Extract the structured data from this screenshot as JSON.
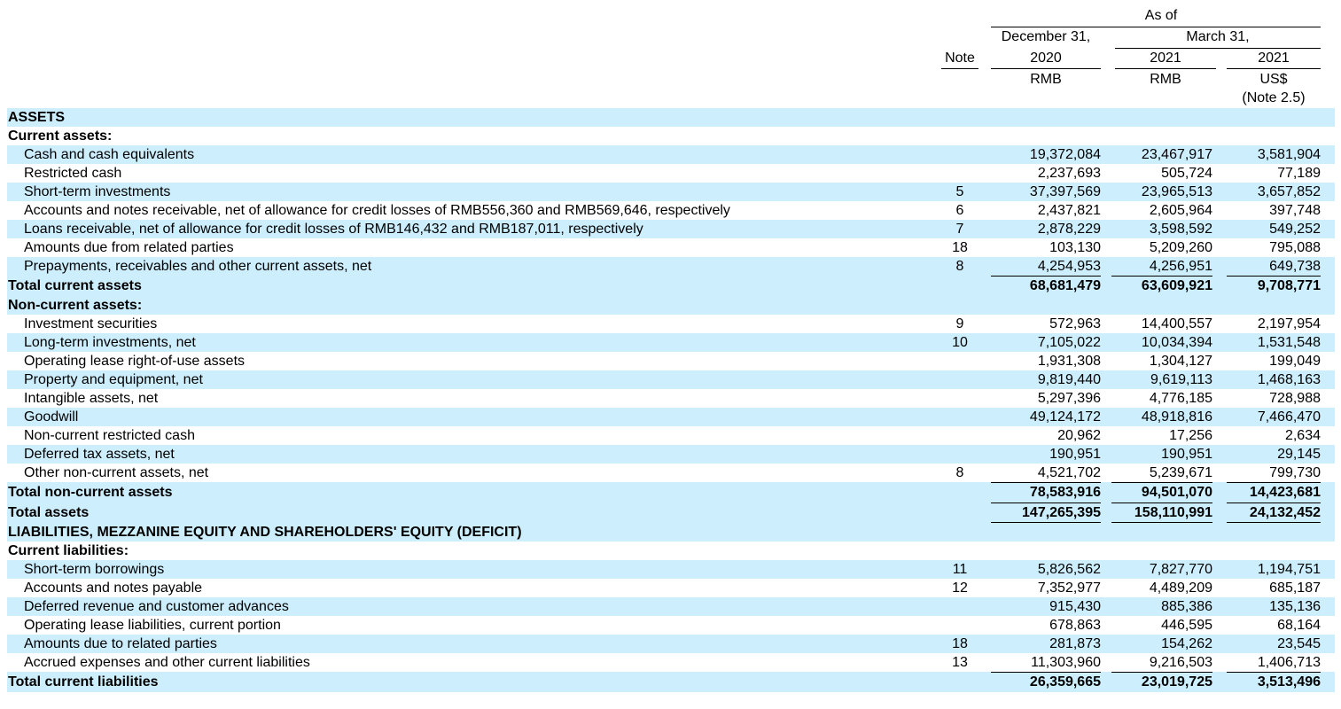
{
  "header": {
    "as_of": "As of",
    "march31": "March 31,",
    "dec31": "December 31,",
    "note": "Note",
    "y2020": "2020",
    "y2021a": "2021",
    "y2021b": "2021",
    "rmb1": "RMB",
    "rmb2": "RMB",
    "usd": "US$",
    "note25": "(Note 2.5)"
  },
  "rows": [
    {
      "type": "section",
      "label": "ASSETS"
    },
    {
      "type": "heading",
      "label": "Current assets:"
    },
    {
      "type": "item",
      "label": "Cash and cash equivalents",
      "note": "",
      "v1": "19,372,084",
      "v2": "23,467,917",
      "v3": "3,581,904"
    },
    {
      "type": "item",
      "label": "Restricted cash",
      "note": "",
      "v1": "2,237,693",
      "v2": "505,724",
      "v3": "77,189"
    },
    {
      "type": "item",
      "label": "Short-term investments",
      "note": "5",
      "v1": "37,397,569",
      "v2": "23,965,513",
      "v3": "3,657,852"
    },
    {
      "type": "item",
      "label": "Accounts and notes receivable, net of allowance for credit losses of RMB556,360 and RMB569,646, respectively",
      "note": "6",
      "v1": "2,437,821",
      "v2": "2,605,964",
      "v3": "397,748"
    },
    {
      "type": "item",
      "label": "Loans receivable, net of allowance for credit losses of RMB146,432 and RMB187,011, respectively",
      "note": "7",
      "v1": "2,878,229",
      "v2": "3,598,592",
      "v3": "549,252"
    },
    {
      "type": "item",
      "label": "Amounts due from related parties",
      "note": "18",
      "v1": "103,130",
      "v2": "5,209,260",
      "v3": "795,088"
    },
    {
      "type": "item",
      "label": "Prepayments, receivables and other current assets, net",
      "note": "8",
      "v1": "4,254,953",
      "v2": "4,256,951",
      "v3": "649,738"
    },
    {
      "type": "total",
      "label": "Total current assets",
      "note": "",
      "v1": "68,681,479",
      "v2": "63,609,921",
      "v3": "9,708,771"
    },
    {
      "type": "heading",
      "label": "Non-current assets:"
    },
    {
      "type": "item",
      "label": "Investment securities",
      "note": "9",
      "v1": "572,963",
      "v2": "14,400,557",
      "v3": "2,197,954"
    },
    {
      "type": "item",
      "label": "Long-term investments, net",
      "note": "10",
      "v1": "7,105,022",
      "v2": "10,034,394",
      "v3": "1,531,548"
    },
    {
      "type": "item",
      "label": "Operating lease right-of-use assets",
      "note": "",
      "v1": "1,931,308",
      "v2": "1,304,127",
      "v3": "199,049"
    },
    {
      "type": "item",
      "label": "Property and equipment, net",
      "note": "",
      "v1": "9,819,440",
      "v2": "9,619,113",
      "v3": "1,468,163"
    },
    {
      "type": "item",
      "label": "Intangible assets, net",
      "note": "",
      "v1": "5,297,396",
      "v2": "4,776,185",
      "v3": "728,988"
    },
    {
      "type": "item",
      "label": "Goodwill",
      "note": "",
      "v1": "49,124,172",
      "v2": "48,918,816",
      "v3": "7,466,470"
    },
    {
      "type": "item",
      "label": "Non-current restricted cash",
      "note": "",
      "v1": "20,962",
      "v2": "17,256",
      "v3": "2,634"
    },
    {
      "type": "item",
      "label": "Deferred tax assets, net",
      "note": "",
      "v1": "190,951",
      "v2": "190,951",
      "v3": "29,145"
    },
    {
      "type": "item",
      "label": "Other non-current assets, net",
      "note": "8",
      "v1": "4,521,702",
      "v2": "5,239,671",
      "v3": "799,730"
    },
    {
      "type": "total",
      "label": "Total non-current assets",
      "note": "",
      "v1": "78,583,916",
      "v2": "94,501,070",
      "v3": "14,423,681"
    },
    {
      "type": "total",
      "label": "Total assets",
      "note": "",
      "v1": "147,265,395",
      "v2": "158,110,991",
      "v3": "24,132,452",
      "double": true
    },
    {
      "type": "section",
      "label": "LIABILITIES, MEZZANINE EQUITY AND SHAREHOLDERS' EQUITY (DEFICIT)"
    },
    {
      "type": "heading",
      "label": "Current liabilities:"
    },
    {
      "type": "item",
      "label": "Short-term borrowings",
      "note": "11",
      "v1": "5,826,562",
      "v2": "7,827,770",
      "v3": "1,194,751"
    },
    {
      "type": "item",
      "label": "Accounts and notes payable",
      "note": "12",
      "v1": "7,352,977",
      "v2": "4,489,209",
      "v3": "685,187"
    },
    {
      "type": "item",
      "label": "Deferred revenue and customer advances",
      "note": "",
      "v1": "915,430",
      "v2": "885,386",
      "v3": "135,136"
    },
    {
      "type": "item",
      "label": "Operating lease liabilities, current portion",
      "note": "",
      "v1": "678,863",
      "v2": "446,595",
      "v3": "68,164"
    },
    {
      "type": "item",
      "label": "Amounts due to related parties",
      "note": "18",
      "v1": "281,873",
      "v2": "154,262",
      "v3": "23,545"
    },
    {
      "type": "item",
      "label": "Accrued expenses and other current liabilities",
      "note": "13",
      "v1": "11,303,960",
      "v2": "9,216,503",
      "v3": "1,406,713"
    },
    {
      "type": "total",
      "label": "Total current liabilities",
      "note": "",
      "v1": "26,359,665",
      "v2": "23,019,725",
      "v3": "3,513,496"
    }
  ]
}
